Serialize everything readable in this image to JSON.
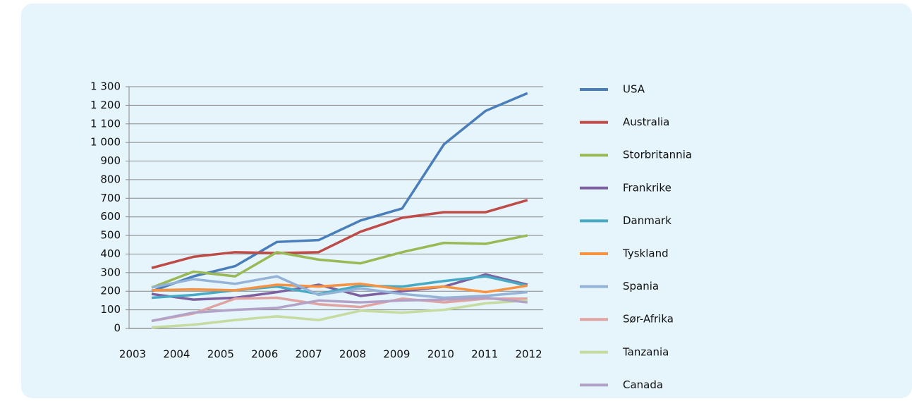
{
  "chart_data": {
    "type": "line",
    "categories": [
      "2003",
      "2004",
      "2005",
      "2006",
      "2007",
      "2008",
      "2009",
      "2010",
      "2011",
      "2012"
    ],
    "series": [
      {
        "name": "USA",
        "color": "#4a7ebb",
        "values": [
          200,
          280,
          335,
          465,
          475,
          580,
          645,
          990,
          1170,
          1265
        ]
      },
      {
        "name": "Australia",
        "color": "#be4b48",
        "values": [
          325,
          385,
          410,
          405,
          410,
          520,
          595,
          625,
          625,
          690
        ]
      },
      {
        "name": "Storbritannia",
        "color": "#98b954",
        "values": [
          220,
          305,
          280,
          410,
          370,
          350,
          410,
          460,
          455,
          500
        ]
      },
      {
        "name": "Frankrike",
        "color": "#7d60a0",
        "values": [
          185,
          155,
          165,
          195,
          235,
          175,
          200,
          225,
          290,
          235
        ]
      },
      {
        "name": "Danmark",
        "color": "#46aac5",
        "values": [
          165,
          180,
          205,
          225,
          185,
          230,
          225,
          255,
          280,
          230
        ]
      },
      {
        "name": "Tyskland",
        "color": "#f69240",
        "values": [
          205,
          210,
          205,
          235,
          225,
          240,
          210,
          225,
          195,
          230
        ]
      },
      {
        "name": "Spania",
        "color": "#95b3d7",
        "values": [
          220,
          265,
          240,
          280,
          180,
          215,
          185,
          165,
          175,
          195
        ]
      },
      {
        "name": "Sør-Afrika",
        "color": "#e0a3a1",
        "values": [
          40,
          80,
          160,
          165,
          130,
          115,
          160,
          140,
          160,
          160
        ]
      },
      {
        "name": "Tanzania",
        "color": "#c6dba0",
        "values": [
          5,
          20,
          45,
          65,
          45,
          95,
          85,
          100,
          135,
          150
        ]
      },
      {
        "name": "Canada",
        "color": "#b3a2c7",
        "values": [
          40,
          85,
          100,
          110,
          150,
          140,
          150,
          155,
          165,
          140
        ]
      }
    ],
    "ylim": [
      0,
      1300
    ],
    "yticks": [
      0,
      100,
      200,
      300,
      400,
      500,
      600,
      700,
      800,
      900,
      {
        "value": 1000,
        "label": "1 000"
      },
      {
        "value": 1100,
        "label": "1 100"
      },
      {
        "value": 1200,
        "label": "1 200"
      },
      {
        "value": 1300,
        "label": "1 300"
      }
    ],
    "grid": true,
    "legend": "right"
  }
}
